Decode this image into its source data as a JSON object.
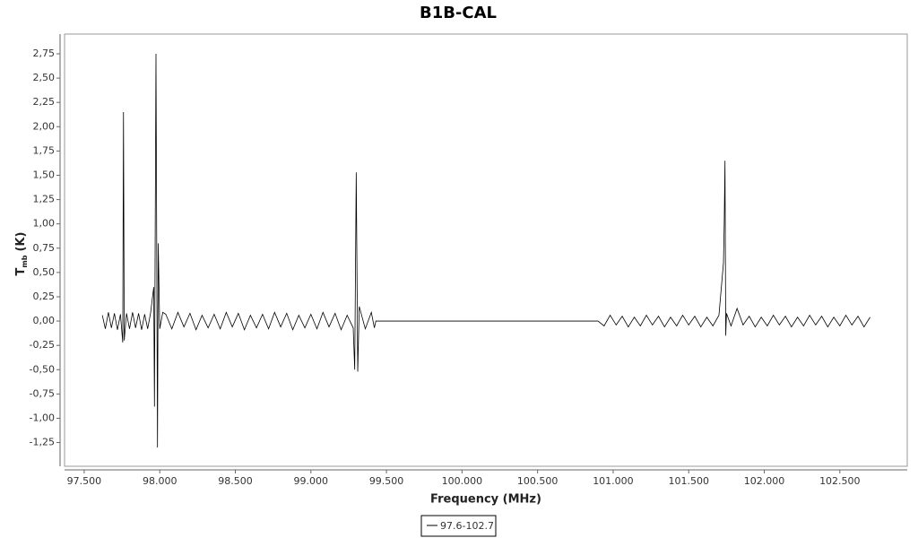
{
  "chart_data": {
    "type": "line",
    "title": "B1B-CAL",
    "xlabel": "Frequency (MHz)",
    "ylabel": {
      "main": "T",
      "sub": "mb",
      "unit": "(K)"
    },
    "xlim": [
      97.37,
      102.946
    ],
    "ylim": [
      -1.494,
      2.953
    ],
    "xticks": [
      {
        "value": 97.5,
        "label": "97.500"
      },
      {
        "value": 98,
        "label": "98.000"
      },
      {
        "value": 98.5,
        "label": "98.500"
      },
      {
        "value": 99,
        "label": "99.000"
      },
      {
        "value": 99.5,
        "label": "99.500"
      },
      {
        "value": 100,
        "label": "100.000"
      },
      {
        "value": 100.5,
        "label": "100.500"
      },
      {
        "value": 101,
        "label": "101.000"
      },
      {
        "value": 101.5,
        "label": "101.500"
      },
      {
        "value": 102,
        "label": "102.000"
      },
      {
        "value": 102.5,
        "label": "102.500"
      }
    ],
    "yticks": [
      {
        "value": -1.25,
        "label": "-1,25"
      },
      {
        "value": -1,
        "label": "-1,00"
      },
      {
        "value": -0.75,
        "label": "-0,75"
      },
      {
        "value": -0.5,
        "label": "-0,50"
      },
      {
        "value": -0.25,
        "label": "-0,25"
      },
      {
        "value": 0,
        "label": "0,00"
      },
      {
        "value": 0.25,
        "label": "0,25"
      },
      {
        "value": 0.5,
        "label": "0,50"
      },
      {
        "value": 0.75,
        "label": "0,75"
      },
      {
        "value": 1,
        "label": "1,00"
      },
      {
        "value": 1.25,
        "label": "1,25"
      },
      {
        "value": 1.5,
        "label": "1,50"
      },
      {
        "value": 1.75,
        "label": "1,75"
      },
      {
        "value": 2,
        "label": "2,00"
      },
      {
        "value": 2.25,
        "label": "2,25"
      },
      {
        "value": 2.5,
        "label": "2,50"
      },
      {
        "value": 2.75,
        "label": "2,75"
      }
    ],
    "x": [
      97.62,
      97.64,
      97.66,
      97.68,
      97.7,
      97.72,
      97.74,
      97.755,
      97.76,
      97.765,
      97.78,
      97.8,
      97.82,
      97.84,
      97.86,
      97.88,
      97.9,
      97.92,
      97.94,
      97.96,
      97.965,
      97.975,
      97.985,
      97.99,
      98.0,
      98.02,
      98.04,
      98.08,
      98.12,
      98.16,
      98.2,
      98.24,
      98.28,
      98.32,
      98.36,
      98.4,
      98.44,
      98.48,
      98.52,
      98.56,
      98.6,
      98.64,
      98.68,
      98.72,
      98.76,
      98.8,
      98.84,
      98.88,
      98.92,
      98.96,
      99.0,
      99.04,
      99.08,
      99.12,
      99.16,
      99.2,
      99.24,
      99.28,
      99.29,
      99.3,
      99.31,
      99.32,
      99.36,
      99.4,
      99.42,
      99.43,
      100.9,
      100.94,
      100.98,
      101.02,
      101.06,
      101.1,
      101.14,
      101.18,
      101.22,
      101.26,
      101.3,
      101.34,
      101.38,
      101.42,
      101.46,
      101.5,
      101.54,
      101.58,
      101.62,
      101.66,
      101.7,
      101.73,
      101.735,
      101.74,
      101.745,
      101.75,
      101.78,
      101.82,
      101.86,
      101.9,
      101.94,
      101.98,
      102.02,
      102.06,
      102.1,
      102.14,
      102.18,
      102.22,
      102.26,
      102.3,
      102.34,
      102.38,
      102.42,
      102.46,
      102.5,
      102.54,
      102.58,
      102.62,
      102.66,
      102.7
    ],
    "series": [
      {
        "name": "97.6-102.7",
        "color": "#000000",
        "values": [
          0.06,
          -0.08,
          0.09,
          -0.07,
          0.08,
          -0.09,
          0.07,
          -0.22,
          2.15,
          -0.2,
          0.08,
          -0.08,
          0.09,
          -0.07,
          0.08,
          -0.09,
          0.07,
          -0.08,
          0.09,
          0.35,
          -0.88,
          2.75,
          -1.3,
          0.8,
          -0.08,
          0.09,
          0.07,
          -0.08,
          0.09,
          -0.06,
          0.08,
          -0.09,
          0.06,
          -0.07,
          0.07,
          -0.08,
          0.09,
          -0.06,
          0.08,
          -0.09,
          0.06,
          -0.07,
          0.07,
          -0.08,
          0.09,
          -0.06,
          0.08,
          -0.09,
          0.06,
          -0.07,
          0.07,
          -0.08,
          0.09,
          -0.06,
          0.08,
          -0.09,
          0.06,
          -0.07,
          -0.5,
          1.53,
          -0.52,
          0.15,
          -0.08,
          0.09,
          -0.07,
          0,
          0,
          -0.05,
          0.06,
          -0.04,
          0.05,
          -0.06,
          0.04,
          -0.05,
          0.06,
          -0.04,
          0.05,
          -0.06,
          0.04,
          -0.05,
          0.06,
          -0.04,
          0.05,
          -0.06,
          0.04,
          -0.05,
          0.06,
          0.6,
          1.0,
          1.65,
          -0.15,
          0.08,
          -0.05,
          0.13,
          -0.04,
          0.05,
          -0.06,
          0.04,
          -0.05,
          0.06,
          -0.04,
          0.05,
          -0.06,
          0.04,
          -0.05,
          0.06,
          -0.04,
          0.05,
          -0.06,
          0.04,
          -0.05,
          0.06,
          -0.04,
          0.05,
          -0.06,
          0.04
        ]
      }
    ]
  }
}
